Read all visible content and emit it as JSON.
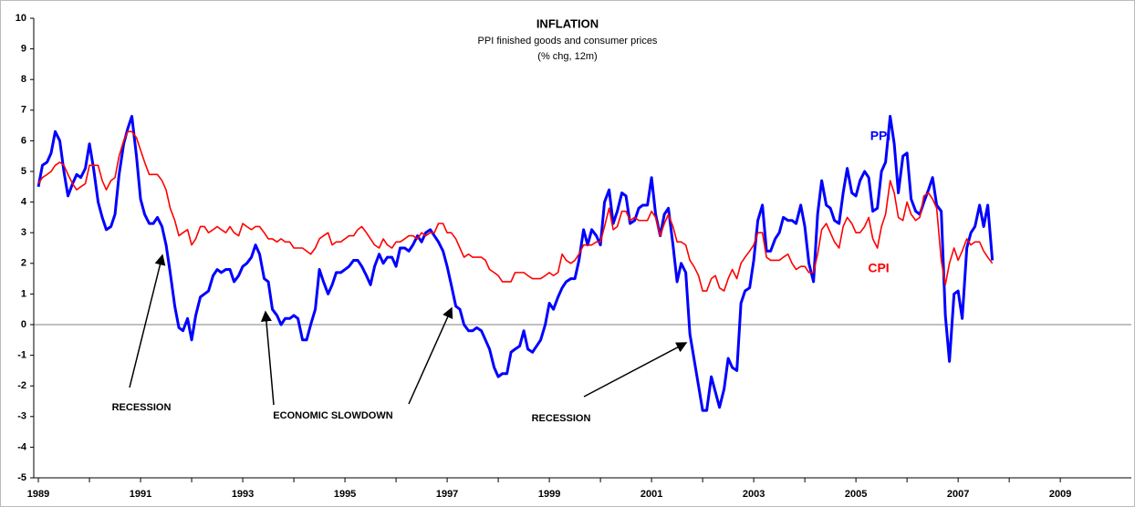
{
  "chart_data": {
    "type": "line",
    "title": "INFLATION",
    "subtitle": [
      "PPI finished goods and consumer prices",
      "(% chg, 12m)"
    ],
    "annotations": [
      "RECESSION",
      "ECONOMIC SLOWDOWN",
      "RECESSION"
    ],
    "xlim": [
      1988.91,
      2010.39
    ],
    "xticks": [
      1989,
      1991,
      1993,
      1995,
      1997,
      1999,
      2001,
      2003,
      2005,
      2007,
      2009
    ],
    "ylim": [
      -5,
      10
    ],
    "yticks": [
      -5,
      -4,
      -3,
      -2,
      -1,
      0,
      1,
      2,
      3,
      4,
      5,
      6,
      7,
      8,
      9,
      10
    ],
    "x": [
      1989.0,
      1989.08,
      1989.17,
      1989.25,
      1989.33,
      1989.42,
      1989.5,
      1989.58,
      1989.67,
      1989.75,
      1989.83,
      1989.92,
      1990.0,
      1990.08,
      1990.17,
      1990.25,
      1990.33,
      1990.42,
      1990.5,
      1990.58,
      1990.67,
      1990.75,
      1990.83,
      1990.92,
      1991.0,
      1991.08,
      1991.17,
      1991.25,
      1991.33,
      1991.42,
      1991.5,
      1991.58,
      1991.67,
      1991.75,
      1991.83,
      1991.92,
      1992.0,
      1992.08,
      1992.17,
      1992.25,
      1992.33,
      1992.42,
      1992.5,
      1992.58,
      1992.67,
      1992.75,
      1992.83,
      1992.92,
      1993.0,
      1993.08,
      1993.17,
      1993.25,
      1993.33,
      1993.42,
      1993.5,
      1993.58,
      1993.67,
      1993.75,
      1993.83,
      1993.92,
      1994.0,
      1994.08,
      1994.17,
      1994.25,
      1994.33,
      1994.42,
      1994.5,
      1994.58,
      1994.67,
      1994.75,
      1994.83,
      1994.92,
      1995.0,
      1995.08,
      1995.17,
      1995.25,
      1995.33,
      1995.42,
      1995.5,
      1995.58,
      1995.67,
      1995.75,
      1995.83,
      1995.92,
      1996.0,
      1996.08,
      1996.17,
      1996.25,
      1996.33,
      1996.42,
      1996.5,
      1996.58,
      1996.67,
      1996.75,
      1996.83,
      1996.92,
      1997.0,
      1997.08,
      1997.17,
      1997.25,
      1997.33,
      1997.42,
      1997.5,
      1997.58,
      1997.67,
      1997.75,
      1997.83,
      1997.92,
      1998.0,
      1998.08,
      1998.17,
      1998.25,
      1998.33,
      1998.42,
      1998.5,
      1998.58,
      1998.67,
      1998.75,
      1998.83,
      1998.92,
      1999.0,
      1999.08,
      1999.17,
      1999.25,
      1999.33,
      1999.42,
      1999.5,
      1999.58,
      1999.67,
      1999.75,
      1999.83,
      1999.92,
      2000.0,
      2000.08,
      2000.17,
      2000.25,
      2000.33,
      2000.42,
      2000.5,
      2000.58,
      2000.67,
      2000.75,
      2000.83,
      2000.92,
      2001.0,
      2001.08,
      2001.17,
      2001.25,
      2001.33,
      2001.42,
      2001.5,
      2001.58,
      2001.67,
      2001.75,
      2001.83,
      2001.92,
      2002.0,
      2002.08,
      2002.17,
      2002.25,
      2002.33,
      2002.42,
      2002.5,
      2002.58,
      2002.67,
      2002.75,
      2002.83,
      2002.92,
      2003.0,
      2003.08,
      2003.17,
      2003.25,
      2003.33,
      2003.42,
      2003.5,
      2003.58,
      2003.67,
      2003.75,
      2003.83,
      2003.92,
      2004.0,
      2004.08,
      2004.17,
      2004.25,
      2004.33,
      2004.42,
      2004.5,
      2004.58,
      2004.67,
      2004.75,
      2004.83,
      2004.92,
      2005.0,
      2005.08,
      2005.17,
      2005.25,
      2005.33,
      2005.42,
      2005.5,
      2005.58,
      2005.67,
      2005.75,
      2005.83,
      2005.92,
      2006.0,
      2006.08,
      2006.17,
      2006.25,
      2006.33,
      2006.42,
      2006.5,
      2006.58,
      2006.67,
      2006.75,
      2006.83,
      2006.92,
      2007.0,
      2007.08,
      2007.17,
      2007.25,
      2007.33,
      2007.42,
      2007.5,
      2007.58,
      2007.67
    ],
    "series": [
      {
        "name": "PPI",
        "color": "#0000ff",
        "width": 3,
        "values": [
          4.5,
          5.2,
          5.3,
          5.6,
          6.3,
          6.0,
          5.0,
          4.2,
          4.6,
          4.9,
          4.8,
          5.1,
          5.9,
          5.1,
          4.0,
          3.5,
          3.1,
          3.2,
          3.6,
          4.9,
          5.9,
          6.4,
          6.8,
          5.5,
          4.1,
          3.6,
          3.3,
          3.3,
          3.5,
          3.2,
          2.6,
          1.7,
          0.6,
          -0.1,
          -0.2,
          0.2,
          -0.5,
          0.3,
          0.9,
          1.0,
          1.1,
          1.6,
          1.8,
          1.7,
          1.8,
          1.8,
          1.4,
          1.6,
          1.9,
          2.0,
          2.2,
          2.6,
          2.3,
          1.5,
          1.4,
          0.5,
          0.3,
          0.0,
          0.2,
          0.2,
          0.3,
          0.2,
          -0.5,
          -0.5,
          0.0,
          0.5,
          1.8,
          1.4,
          1.0,
          1.3,
          1.7,
          1.7,
          1.8,
          1.9,
          2.1,
          2.1,
          1.9,
          1.6,
          1.3,
          1.9,
          2.3,
          2.0,
          2.2,
          2.2,
          1.9,
          2.5,
          2.5,
          2.4,
          2.6,
          2.9,
          2.7,
          3.0,
          3.1,
          2.9,
          2.7,
          2.4,
          1.9,
          1.3,
          0.6,
          0.5,
          0.0,
          -0.2,
          -0.2,
          -0.1,
          -0.2,
          -0.5,
          -0.8,
          -1.4,
          -1.7,
          -1.6,
          -1.6,
          -0.9,
          -0.8,
          -0.7,
          -0.2,
          -0.8,
          -0.9,
          -0.7,
          -0.5,
          0.0,
          0.7,
          0.5,
          0.9,
          1.2,
          1.4,
          1.5,
          1.5,
          2.1,
          3.1,
          2.6,
          3.1,
          2.9,
          2.6,
          4.0,
          4.4,
          3.3,
          3.7,
          4.3,
          4.2,
          3.3,
          3.4,
          3.8,
          3.9,
          3.9,
          4.8,
          3.6,
          2.9,
          3.6,
          3.8,
          2.6,
          1.4,
          2.0,
          1.7,
          -0.3,
          -1.1,
          -2.0,
          -2.8,
          -2.8,
          -1.7,
          -2.2,
          -2.7,
          -2.1,
          -1.1,
          -1.4,
          -1.5,
          0.7,
          1.1,
          1.2,
          2.1,
          3.4,
          3.9,
          2.4,
          2.4,
          2.8,
          3.0,
          3.5,
          3.4,
          3.4,
          3.3,
          3.9,
          3.2,
          2.0,
          1.4,
          3.6,
          4.7,
          3.9,
          3.8,
          3.4,
          3.3,
          4.3,
          5.1,
          4.3,
          4.2,
          4.7,
          5.0,
          4.8,
          3.7,
          3.8,
          5.0,
          5.3,
          6.8,
          5.9,
          4.3,
          5.5,
          5.6,
          4.1,
          3.7,
          3.6,
          4.0,
          4.4,
          4.8,
          3.9,
          3.7,
          0.3,
          -1.2,
          1.0,
          1.1,
          0.2,
          2.5,
          3.0,
          3.2,
          3.9,
          3.2,
          3.9,
          2.1
        ]
      },
      {
        "name": "CPI",
        "color": "#ff0000",
        "width": 1.6,
        "values": [
          4.6,
          4.8,
          4.9,
          5.0,
          5.2,
          5.3,
          5.2,
          4.9,
          4.6,
          4.4,
          4.5,
          4.6,
          5.2,
          5.2,
          5.2,
          4.7,
          4.4,
          4.7,
          4.8,
          5.5,
          6.0,
          6.3,
          6.3,
          6.1,
          5.7,
          5.3,
          4.9,
          4.9,
          4.9,
          4.7,
          4.4,
          3.8,
          3.4,
          2.9,
          3.0,
          3.1,
          2.6,
          2.8,
          3.2,
          3.2,
          3.0,
          3.1,
          3.2,
          3.1,
          3.0,
          3.2,
          3.0,
          2.9,
          3.3,
          3.2,
          3.1,
          3.2,
          3.2,
          3.0,
          2.8,
          2.8,
          2.7,
          2.8,
          2.7,
          2.7,
          2.5,
          2.5,
          2.5,
          2.4,
          2.3,
          2.5,
          2.8,
          2.9,
          3.0,
          2.6,
          2.7,
          2.7,
          2.8,
          2.9,
          2.9,
          3.1,
          3.2,
          3.0,
          2.8,
          2.6,
          2.5,
          2.8,
          2.6,
          2.5,
          2.7,
          2.7,
          2.8,
          2.9,
          2.9,
          2.8,
          3.0,
          2.9,
          3.0,
          3.0,
          3.3,
          3.3,
          3.0,
          3.0,
          2.8,
          2.5,
          2.2,
          2.3,
          2.2,
          2.2,
          2.2,
          2.1,
          1.8,
          1.7,
          1.6,
          1.4,
          1.4,
          1.4,
          1.7,
          1.7,
          1.7,
          1.6,
          1.5,
          1.5,
          1.5,
          1.6,
          1.7,
          1.6,
          1.7,
          2.3,
          2.1,
          2.0,
          2.1,
          2.3,
          2.6,
          2.6,
          2.6,
          2.7,
          2.7,
          3.2,
          3.8,
          3.1,
          3.2,
          3.7,
          3.7,
          3.4,
          3.5,
          3.4,
          3.4,
          3.4,
          3.7,
          3.5,
          2.9,
          3.3,
          3.6,
          3.2,
          2.7,
          2.7,
          2.6,
          2.1,
          1.9,
          1.6,
          1.1,
          1.1,
          1.5,
          1.6,
          1.2,
          1.1,
          1.5,
          1.8,
          1.5,
          2.0,
          2.2,
          2.4,
          2.6,
          3.0,
          3.0,
          2.2,
          2.1,
          2.1,
          2.1,
          2.2,
          2.3,
          2.0,
          1.8,
          1.9,
          1.9,
          1.7,
          1.7,
          2.3,
          3.1,
          3.3,
          3.0,
          2.7,
          2.5,
          3.2,
          3.5,
          3.3,
          3.0,
          3.0,
          3.2,
          3.5,
          2.8,
          2.5,
          3.2,
          3.6,
          4.7,
          4.3,
          3.5,
          3.4,
          4.0,
          3.6,
          3.4,
          3.5,
          4.2,
          4.3,
          4.1,
          3.8,
          2.1,
          1.3,
          2.0,
          2.5,
          2.1,
          2.4,
          2.8,
          2.6,
          2.7,
          2.7,
          2.4,
          2.2,
          2.0
        ]
      }
    ]
  }
}
